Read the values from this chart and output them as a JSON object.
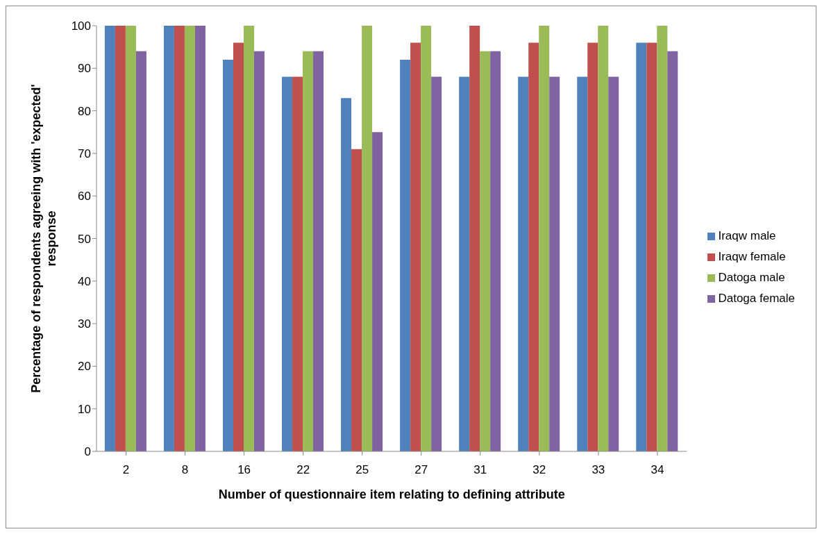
{
  "chart_data": {
    "type": "bar",
    "xlabel": "Number of questionnaire item relating to defining attribute",
    "ylabel": "Percentage of respondents agreeing with 'expected' response",
    "categories": [
      "2",
      "8",
      "16",
      "22",
      "25",
      "27",
      "31",
      "32",
      "33",
      "34"
    ],
    "series": [
      {
        "name": "Iraqw male",
        "color": "#4f81bd",
        "values": [
          100,
          100,
          92,
          88,
          83,
          92,
          88,
          88,
          88,
          96
        ]
      },
      {
        "name": "Iraqw female",
        "color": "#c0504d",
        "values": [
          100,
          100,
          96,
          88,
          71,
          96,
          100,
          96,
          96,
          96
        ]
      },
      {
        "name": "Datoga male",
        "color": "#9bbb59",
        "values": [
          100,
          100,
          100,
          94,
          100,
          100,
          94,
          100,
          100,
          100
        ]
      },
      {
        "name": "Datoga female",
        "color": "#8064a2",
        "values": [
          94,
          100,
          94,
          94,
          75,
          88,
          94,
          88,
          88,
          94
        ]
      }
    ],
    "ylim": [
      0,
      100
    ],
    "yticks": [
      0,
      10,
      20,
      30,
      40,
      50,
      60,
      70,
      80,
      90,
      100
    ],
    "grid": false,
    "legend": "right"
  }
}
